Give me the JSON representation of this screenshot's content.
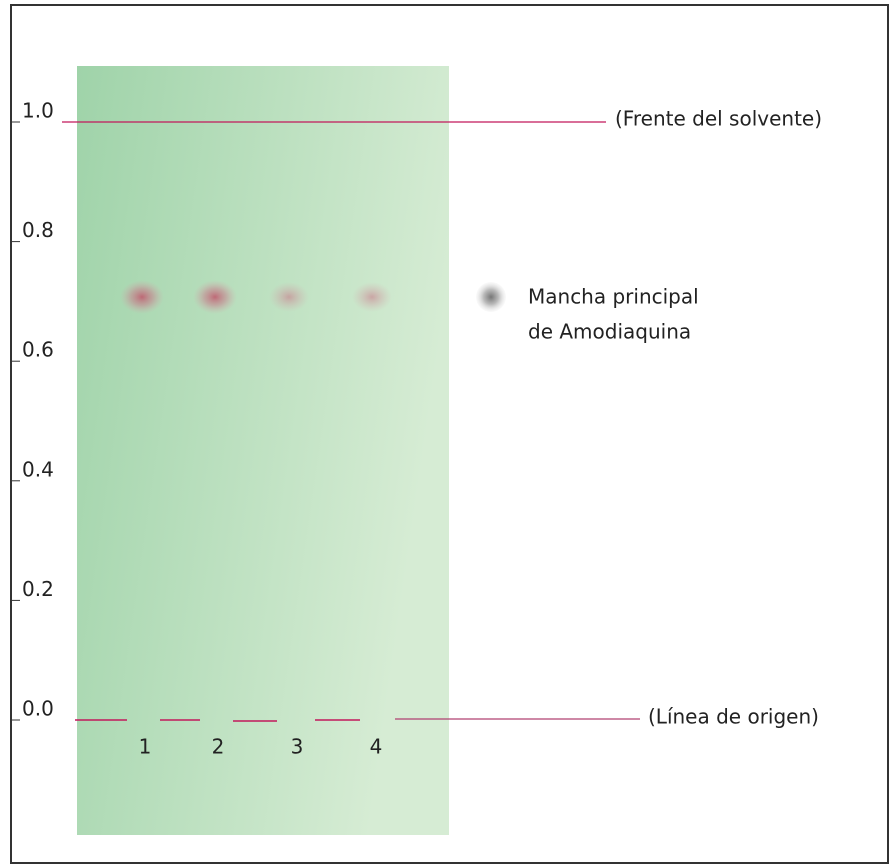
{
  "scale": {
    "ticks": [
      "1.0",
      "0.8",
      "0.6",
      "0.4",
      "0.2",
      "0.0"
    ]
  },
  "annotations": {
    "solvent_front": "(Frente del solvente)",
    "origin_line": "(Línea de origen)"
  },
  "lanes": [
    "1",
    "2",
    "3",
    "4"
  ],
  "legend": {
    "lines": [
      "Mancha principal",
      "de Amodiaquina"
    ]
  }
}
